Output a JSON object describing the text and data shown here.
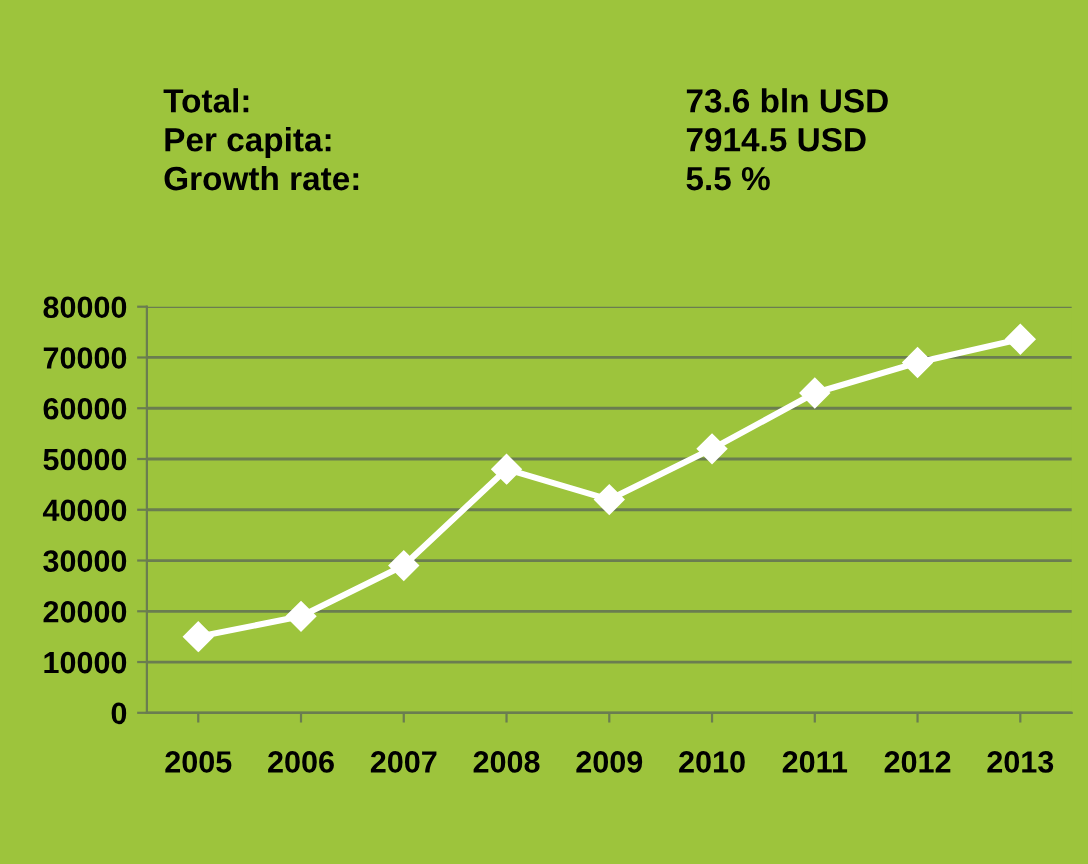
{
  "chart_data": {
    "type": "line",
    "categories": [
      "2005",
      "2006",
      "2007",
      "2008",
      "2009",
      "2010",
      "2011",
      "2012",
      "2013"
    ],
    "series": [
      {
        "color": "#ffffff",
        "values": [
          15000,
          19000,
          29000,
          48000,
          42000,
          52000,
          63000,
          69000,
          73600
        ]
      }
    ],
    "ylim": [
      0,
      80000
    ],
    "yticks": [
      0,
      10000,
      20000,
      30000,
      40000,
      50000,
      60000,
      70000,
      80000
    ],
    "grid": "y",
    "marker": "diamond",
    "line_style": "solid",
    "annotations": [
      "Total:",
      "73.6 bln USD",
      "Per capita:",
      "7914.5 USD",
      "Growth rate:",
      "5.5 %"
    ]
  }
}
